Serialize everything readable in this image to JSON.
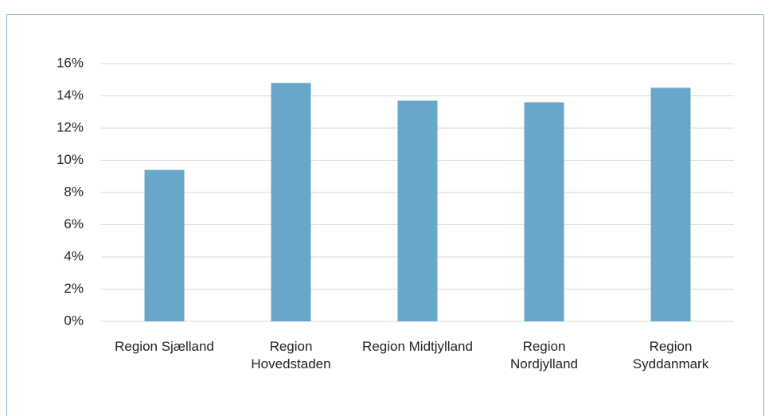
{
  "chart_data": {
    "type": "bar",
    "categories": [
      "Region Sjælland",
      "Region Hovedstaden",
      "Region Midtjylland",
      "Region Nordjylland",
      "Region Syddanmark"
    ],
    "values": [
      9.4,
      14.8,
      13.7,
      13.6,
      14.5
    ],
    "color": "#67a8c9",
    "ylim": [
      0,
      16
    ],
    "yticks": [
      {
        "value": 0,
        "label": "0%"
      },
      {
        "value": 2,
        "label": "2%"
      },
      {
        "value": 4,
        "label": "4%"
      },
      {
        "value": 6,
        "label": "6%"
      },
      {
        "value": 8,
        "label": "8%"
      },
      {
        "value": 10,
        "label": "10%"
      },
      {
        "value": 12,
        "label": "12%"
      },
      {
        "value": 14,
        "label": "14%"
      },
      {
        "value": 16,
        "label": "16%"
      }
    ],
    "grid": true
  }
}
